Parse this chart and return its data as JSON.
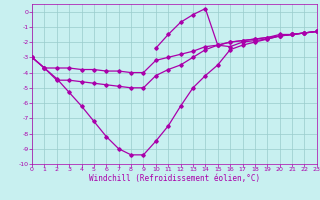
{
  "xlabel": "Windchill (Refroidissement éolien,°C)",
  "bg_color": "#c8f0f0",
  "line_color": "#aa00aa",
  "xlim": [
    0,
    23
  ],
  "ylim": [
    -10,
    0.5
  ],
  "xticks": [
    0,
    1,
    2,
    3,
    4,
    5,
    6,
    7,
    8,
    9,
    10,
    11,
    12,
    13,
    14,
    15,
    16,
    17,
    18,
    19,
    20,
    21,
    22,
    23
  ],
  "yticks": [
    0,
    -1,
    -2,
    -3,
    -4,
    -5,
    -6,
    -7,
    -8,
    -9,
    -10
  ],
  "line1_x": [
    0,
    1,
    2,
    3,
    4,
    5,
    6,
    7,
    8,
    9,
    10,
    11,
    12,
    13,
    14,
    15,
    16,
    17,
    18,
    19,
    20,
    21,
    22,
    23
  ],
  "line1_y": [
    -3.0,
    -3.7,
    -4.4,
    -5.3,
    -6.2,
    -7.2,
    -8.2,
    -9.0,
    -9.4,
    -9.4,
    -8.5,
    -7.5,
    -6.2,
    -5.0,
    -4.2,
    -3.5,
    -2.5,
    -2.2,
    -2.0,
    -1.8,
    -1.6,
    -1.5,
    -1.4,
    -1.3
  ],
  "line2_x": [
    0,
    1,
    2,
    3,
    4,
    5,
    6,
    7,
    8,
    9,
    10,
    11,
    12,
    13,
    14,
    15,
    16,
    17,
    18,
    19,
    20,
    21,
    22,
    23
  ],
  "line2_y": [
    -3.0,
    -3.7,
    -3.7,
    -3.7,
    -3.8,
    -3.8,
    -3.9,
    -3.9,
    -4.0,
    -4.0,
    -3.2,
    -3.0,
    -2.8,
    -2.6,
    -2.3,
    -2.2,
    -2.0,
    -1.9,
    -1.8,
    -1.7,
    -1.5,
    -1.5,
    -1.4,
    -1.3
  ],
  "line3_x": [
    10,
    11,
    12,
    13,
    14,
    15,
    16,
    17,
    18,
    19,
    20,
    21,
    22,
    23
  ],
  "line3_y": [
    -2.4,
    -1.5,
    -0.7,
    -0.2,
    0.2,
    -2.2,
    -2.3,
    -2.0,
    -1.9,
    -1.8,
    -1.6,
    -1.5,
    -1.4,
    -1.3
  ],
  "line4_x": [
    0,
    1,
    2,
    3,
    4,
    5,
    6,
    7,
    8,
    9,
    10,
    11,
    12,
    13,
    14,
    15,
    16,
    17,
    18,
    19,
    20,
    21,
    22,
    23
  ],
  "line4_y": [
    -3.0,
    -3.7,
    -4.5,
    -4.5,
    -4.6,
    -4.7,
    -4.8,
    -4.9,
    -5.0,
    -5.0,
    -4.2,
    -3.8,
    -3.5,
    -3.0,
    -2.5,
    -2.2,
    -2.0,
    -1.9,
    -1.8,
    -1.7,
    -1.6,
    -1.5,
    -1.4,
    -1.3
  ],
  "grid_color": "#99cccc",
  "tick_fontsize": 4.5,
  "xlabel_fontsize": 5.5
}
